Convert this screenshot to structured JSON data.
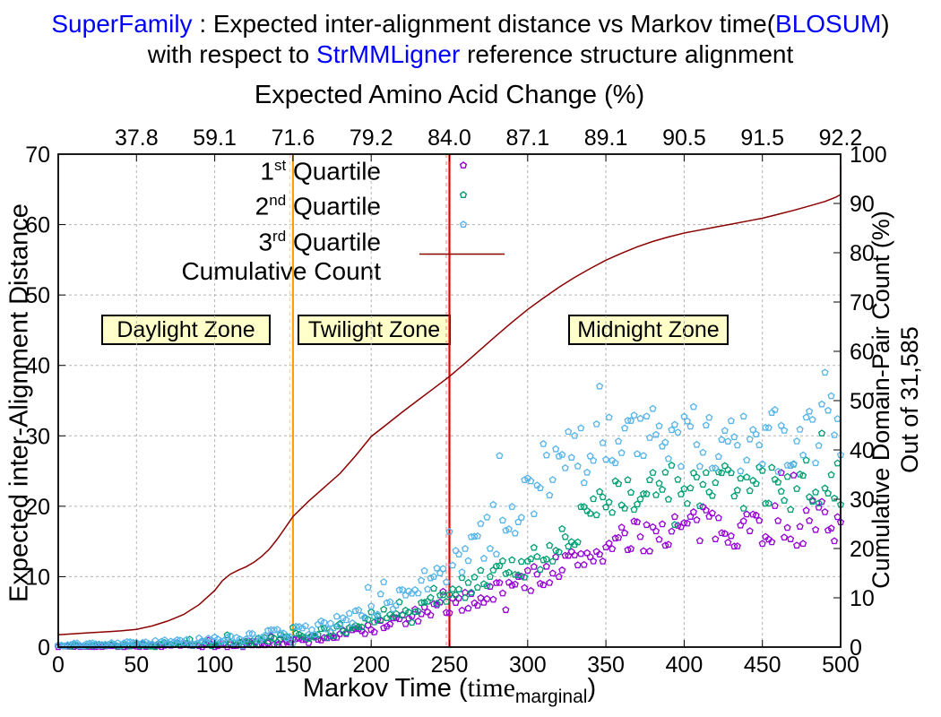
{
  "title": {
    "part1": "SuperFamily",
    "part2": " : Expected inter-alignment distance vs Markov time(",
    "part3": "BLOSUM",
    "part4": ")",
    "line2a": "with respect to ",
    "line2b": "StrMMLigner",
    "line2c": " reference structure alignment",
    "accent_color": "#0000ff"
  },
  "chart_data": {
    "type": "scatter",
    "x_axis": {
      "label_pre": "Markov Time (",
      "label_time": "time",
      "label_sub": "marginal",
      "label_post": ")",
      "ticks": [
        0,
        50,
        100,
        150,
        200,
        250,
        300,
        350,
        400,
        450,
        500
      ],
      "range": [
        0,
        500
      ]
    },
    "x2_axis": {
      "title": "Expected Amino Acid Change (%)",
      "tick_positions": [
        50,
        100,
        150,
        200,
        250,
        300,
        350,
        400,
        450,
        500
      ],
      "tick_labels": [
        "37.8",
        "59.1",
        "71.6",
        "79.2",
        "84.0",
        "87.1",
        "89.1",
        "90.5",
        "91.5",
        "92.2"
      ]
    },
    "y_axis": {
      "label": "Expected inter-Alignment Distance",
      "ticks": [
        0,
        10,
        20,
        30,
        40,
        50,
        60,
        70
      ],
      "range": [
        0,
        70
      ]
    },
    "y2_axis": {
      "label_line1": "Cumulative Domain-Pair Count (%)",
      "label_line2": "Out of 31,585",
      "ticks": [
        0,
        10,
        20,
        30,
        40,
        50,
        60,
        70,
        80,
        90,
        100
      ],
      "range": [
        0,
        100
      ]
    },
    "grid_color": "#b3b3b3",
    "zones": [
      {
        "label": "Daylight Zone",
        "range": [
          0,
          150
        ]
      },
      {
        "label": "Twilight Zone",
        "range": [
          150,
          250
        ]
      },
      {
        "label": "Midnight Zone",
        "range": [
          250,
          500
        ]
      }
    ],
    "boundaries": [
      {
        "x": 150,
        "color": "#ff9f00"
      },
      {
        "x": 250,
        "color": "#e60000"
      }
    ],
    "legend": [
      {
        "base": "1",
        "sup": "st",
        "rest": " Quartile"
      },
      {
        "base": "2",
        "sup": "nd",
        "rest": " Quartile"
      },
      {
        "base": "3",
        "sup": "rd",
        "rest": " Quartile"
      }
    ],
    "series": [
      {
        "name": "1st Quartile",
        "color": "#9400d3",
        "trend_x": [
          0,
          25,
          50,
          75,
          100,
          125,
          150,
          175,
          200,
          225,
          250,
          275,
          300,
          325,
          350,
          375,
          400,
          425,
          450,
          475,
          500
        ],
        "mean": [
          0.1,
          0.12,
          0.15,
          0.2,
          0.3,
          0.5,
          0.8,
          1.5,
          2.8,
          4.2,
          5.8,
          7.5,
          9.5,
          11.8,
          14.0,
          16.0,
          17.0,
          17.2,
          17.3,
          17.6,
          18.0
        ],
        "spread": [
          0.1,
          0.1,
          0.15,
          0.2,
          0.3,
          0.4,
          0.5,
          0.7,
          0.9,
          1.05,
          1.2,
          1.5,
          1.8,
          2.0,
          2.2,
          2.5,
          2.8,
          2.9,
          3.0,
          3.2,
          3.3
        ]
      },
      {
        "name": "2nd Quartile",
        "color": "#009e73",
        "trend_x": [
          0,
          25,
          50,
          75,
          100,
          125,
          150,
          175,
          200,
          225,
          250,
          275,
          300,
          325,
          350,
          375,
          400,
          425,
          450,
          475,
          500
        ],
        "mean": [
          0.15,
          0.2,
          0.3,
          0.4,
          0.55,
          0.9,
          1.4,
          2.2,
          4.0,
          5.8,
          7.8,
          9.8,
          11.8,
          16.0,
          20.5,
          22.5,
          23.2,
          23.0,
          22.5,
          23.0,
          23.5
        ],
        "spread": [
          0.12,
          0.15,
          0.2,
          0.28,
          0.4,
          0.5,
          0.6,
          0.8,
          1.0,
          1.25,
          1.5,
          1.9,
          2.3,
          2.6,
          2.8,
          2.9,
          3.0,
          3.2,
          3.5,
          3.6,
          3.8
        ]
      },
      {
        "name": "3rd Quartile",
        "color": "#56b4e9",
        "trend_x": [
          0,
          25,
          50,
          75,
          100,
          125,
          150,
          175,
          200,
          225,
          250,
          275,
          300,
          325,
          350,
          375,
          400,
          425,
          450,
          475,
          500
        ],
        "mean": [
          0.3,
          0.4,
          0.55,
          0.75,
          0.95,
          1.45,
          2.1,
          3.2,
          5.5,
          7.8,
          10.5,
          16.0,
          23.0,
          26.0,
          28.5,
          29.5,
          30.0,
          29.5,
          29.0,
          30.0,
          31.0
        ],
        "spread": [
          0.2,
          0.25,
          0.3,
          0.4,
          0.5,
          0.65,
          0.8,
          1.0,
          1.4,
          1.9,
          2.5,
          4.0,
          5.5,
          5.0,
          4.5,
          4.5,
          4.5,
          4.6,
          4.5,
          4.8,
          5.0
        ]
      }
    ],
    "scatter": {
      "x_min": 0,
      "x_max": 500,
      "x_step": 2,
      "seed": 7
    },
    "cumulative": {
      "name": "Cumulative Count",
      "color": "#8b0000",
      "points": [
        [
          0,
          2.5
        ],
        [
          10,
          2.7
        ],
        [
          20,
          2.9
        ],
        [
          30,
          3.1
        ],
        [
          40,
          3.3
        ],
        [
          50,
          3.6
        ],
        [
          60,
          4.3
        ],
        [
          70,
          5.3
        ],
        [
          80,
          6.6
        ],
        [
          90,
          8.6
        ],
        [
          100,
          11.5
        ],
        [
          105,
          13.5
        ],
        [
          110,
          14.8
        ],
        [
          115,
          15.6
        ],
        [
          120,
          16.3
        ],
        [
          125,
          17.2
        ],
        [
          130,
          18.4
        ],
        [
          135,
          19.9
        ],
        [
          140,
          21.9
        ],
        [
          145,
          24.2
        ],
        [
          150,
          26.5
        ],
        [
          160,
          29.6
        ],
        [
          170,
          32.4
        ],
        [
          180,
          35.2
        ],
        [
          190,
          38.8
        ],
        [
          200,
          42.7
        ],
        [
          210,
          45.2
        ],
        [
          220,
          47.7
        ],
        [
          230,
          50.1
        ],
        [
          240,
          52.5
        ],
        [
          250,
          54.9
        ],
        [
          260,
          57.6
        ],
        [
          270,
          60.4
        ],
        [
          280,
          63.2
        ],
        [
          290,
          65.9
        ],
        [
          300,
          68.5
        ],
        [
          310,
          70.8
        ],
        [
          320,
          73.0
        ],
        [
          330,
          75.0
        ],
        [
          340,
          76.8
        ],
        [
          350,
          78.5
        ],
        [
          360,
          79.9
        ],
        [
          370,
          81.2
        ],
        [
          380,
          82.3
        ],
        [
          390,
          83.2
        ],
        [
          400,
          84.0
        ],
        [
          410,
          84.6
        ],
        [
          420,
          85.2
        ],
        [
          430,
          85.8
        ],
        [
          440,
          86.4
        ],
        [
          450,
          87.0
        ],
        [
          460,
          87.8
        ],
        [
          470,
          88.6
        ],
        [
          480,
          89.5
        ],
        [
          490,
          90.4
        ],
        [
          497,
          91.3
        ],
        [
          500,
          91.8
        ],
        [
          500,
          97.6
        ]
      ]
    }
  }
}
